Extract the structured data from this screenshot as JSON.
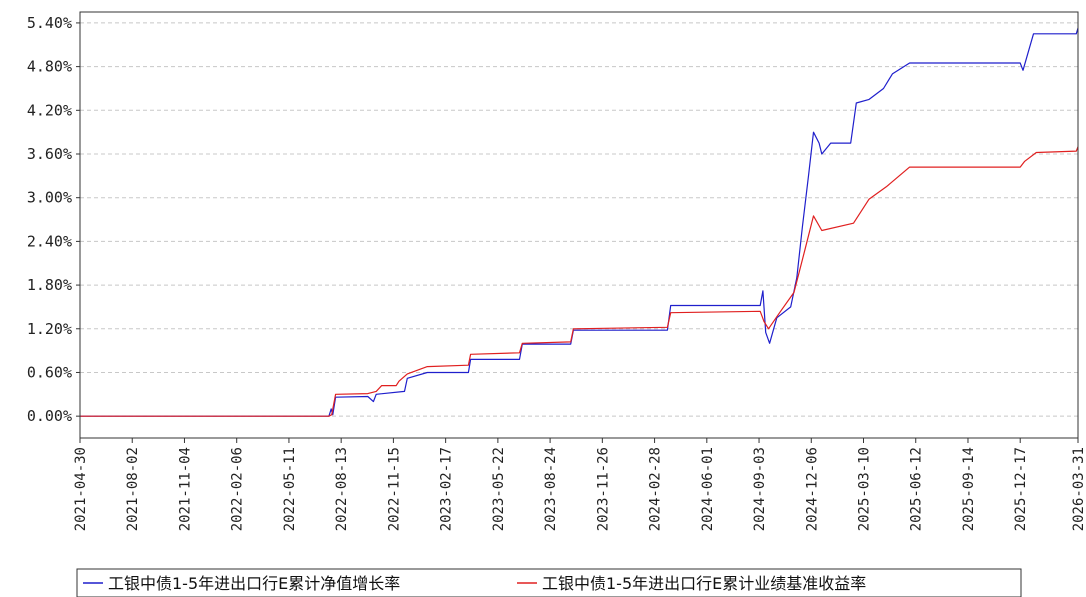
{
  "chart_data": {
    "type": "line",
    "title": "",
    "xlabel": "",
    "ylabel": "",
    "y_unit": "percent",
    "ylim": [
      -0.3,
      5.55
    ],
    "y_ticks": [
      "0.00%",
      "0.60%",
      "1.20%",
      "1.80%",
      "2.40%",
      "3.00%",
      "3.60%",
      "4.20%",
      "4.80%",
      "5.40%"
    ],
    "y_tick_values": [
      0,
      0.6,
      1.2,
      1.8,
      2.4,
      3.0,
      3.6,
      4.2,
      4.8,
      5.4
    ],
    "x_tick_labels": [
      "2021-04-30",
      "2021-08-02",
      "2021-11-04",
      "2022-02-06",
      "2022-05-11",
      "2022-08-13",
      "2022-11-15",
      "2023-02-17",
      "2023-05-22",
      "2023-08-24",
      "2023-11-26",
      "2024-02-28",
      "2024-06-01",
      "2024-09-03",
      "2024-12-06",
      "2025-03-10",
      "2025-06-12",
      "2025-09-14",
      "2025-12-17",
      "2026-03-31"
    ],
    "grid": true,
    "grid_style": "dashed-horizontal",
    "legend_position": "bottom",
    "colors": {
      "series1": "#1f1fcc",
      "series2": "#e02020",
      "grid": "#c8c8c8",
      "axis": "#333333"
    },
    "series": [
      {
        "name": "工银中债1-5年进出口行E累计净值增长率",
        "color": "#1f1fcc",
        "points": [
          [
            "2021-04-30",
            0.0
          ],
          [
            "2022-07-22",
            0.0
          ],
          [
            "2022-07-26",
            0.1
          ],
          [
            "2022-07-29",
            0.02
          ],
          [
            "2022-08-03",
            0.26
          ],
          [
            "2022-09-30",
            0.27
          ],
          [
            "2022-10-10",
            0.2
          ],
          [
            "2022-10-15",
            0.3
          ],
          [
            "2022-12-05",
            0.34
          ],
          [
            "2022-12-10",
            0.52
          ],
          [
            "2023-01-15",
            0.6
          ],
          [
            "2023-03-30",
            0.6
          ],
          [
            "2023-04-03",
            0.78
          ],
          [
            "2023-06-30",
            0.78
          ],
          [
            "2023-07-05",
            0.99
          ],
          [
            "2023-09-30",
            0.99
          ],
          [
            "2023-10-05",
            1.18
          ],
          [
            "2024-03-22",
            1.18
          ],
          [
            "2024-03-28",
            1.52
          ],
          [
            "2024-09-05",
            1.52
          ],
          [
            "2024-09-10",
            1.72
          ],
          [
            "2024-09-15",
            1.15
          ],
          [
            "2024-09-22",
            1.0
          ],
          [
            "2024-10-05",
            1.35
          ],
          [
            "2024-10-30",
            1.5
          ],
          [
            "2024-11-10",
            1.9
          ],
          [
            "2024-11-20",
            2.6
          ],
          [
            "2024-12-01",
            3.3
          ],
          [
            "2024-12-10",
            3.9
          ],
          [
            "2024-12-20",
            3.75
          ],
          [
            "2024-12-25",
            3.6
          ],
          [
            "2025-01-10",
            3.75
          ],
          [
            "2025-02-15",
            3.75
          ],
          [
            "2025-02-25",
            4.3
          ],
          [
            "2025-03-20",
            4.35
          ],
          [
            "2025-04-15",
            4.5
          ],
          [
            "2025-05-01",
            4.7
          ],
          [
            "2025-06-01",
            4.85
          ],
          [
            "2025-12-17",
            4.85
          ],
          [
            "2025-12-22",
            4.75
          ],
          [
            "2026-01-10",
            5.25
          ],
          [
            "2026-03-28",
            5.25
          ],
          [
            "2026-03-31",
            5.33
          ]
        ]
      },
      {
        "name": "工银中债1-5年进出口行E累计业绩基准收益率",
        "color": "#e02020",
        "points": [
          [
            "2021-04-30",
            0.0
          ],
          [
            "2022-07-22",
            0.0
          ],
          [
            "2022-07-27",
            0.02
          ],
          [
            "2022-08-03",
            0.3
          ],
          [
            "2022-09-30",
            0.31
          ],
          [
            "2022-10-15",
            0.34
          ],
          [
            "2022-10-25",
            0.42
          ],
          [
            "2022-11-20",
            0.42
          ],
          [
            "2022-11-25",
            0.48
          ],
          [
            "2022-12-10",
            0.58
          ],
          [
            "2023-01-15",
            0.68
          ],
          [
            "2023-03-30",
            0.7
          ],
          [
            "2023-04-03",
            0.85
          ],
          [
            "2023-06-30",
            0.87
          ],
          [
            "2023-07-05",
            1.0
          ],
          [
            "2023-09-30",
            1.02
          ],
          [
            "2023-10-05",
            1.2
          ],
          [
            "2024-03-22",
            1.22
          ],
          [
            "2024-03-28",
            1.42
          ],
          [
            "2024-09-05",
            1.44
          ],
          [
            "2024-09-12",
            1.3
          ],
          [
            "2024-09-20",
            1.2
          ],
          [
            "2024-10-10",
            1.42
          ],
          [
            "2024-11-05",
            1.7
          ],
          [
            "2024-11-25",
            2.3
          ],
          [
            "2024-12-10",
            2.75
          ],
          [
            "2024-12-25",
            2.55
          ],
          [
            "2025-02-20",
            2.65
          ],
          [
            "2025-03-20",
            2.98
          ],
          [
            "2025-04-20",
            3.15
          ],
          [
            "2025-06-01",
            3.42
          ],
          [
            "2025-12-17",
            3.42
          ],
          [
            "2025-12-25",
            3.5
          ],
          [
            "2026-01-15",
            3.62
          ],
          [
            "2026-03-28",
            3.64
          ],
          [
            "2026-03-31",
            3.7
          ]
        ]
      }
    ]
  }
}
